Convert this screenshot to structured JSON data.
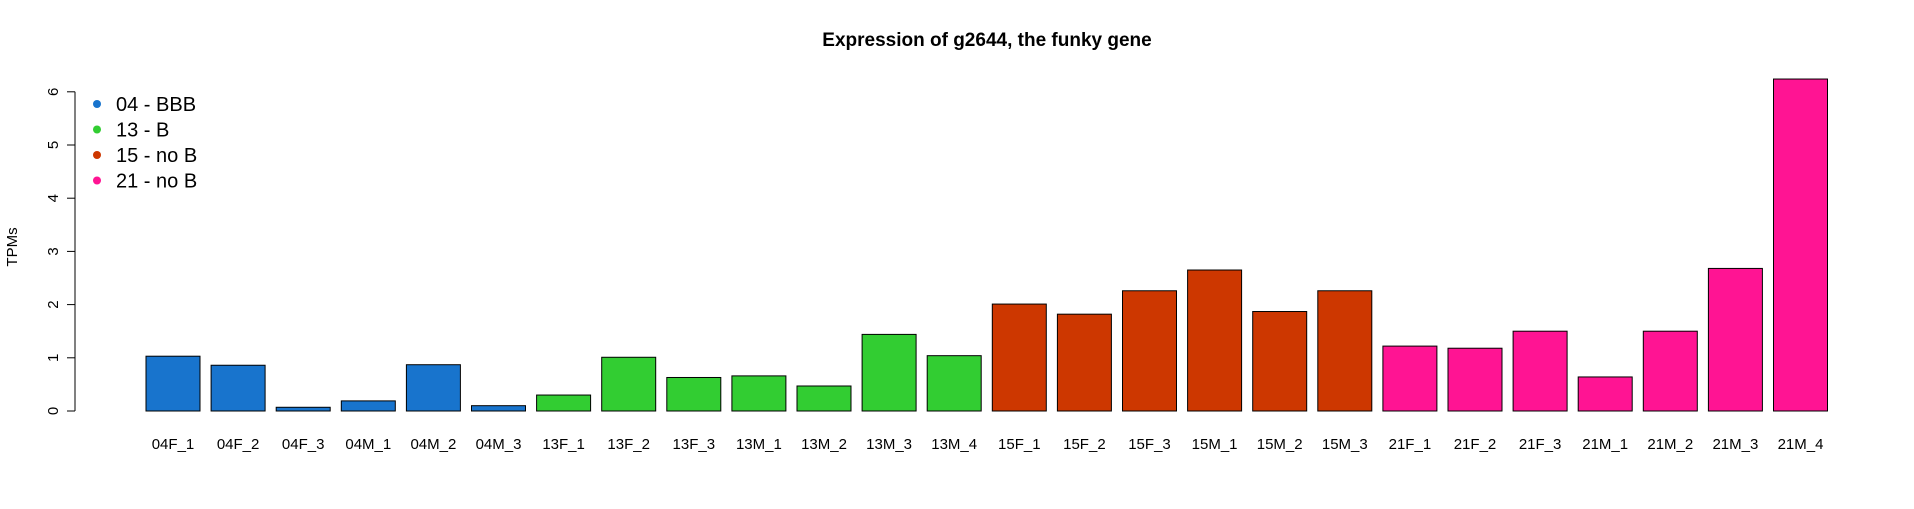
{
  "chart_data": {
    "type": "bar",
    "title": "Expression of g2644, the funky gene",
    "xlabel": "",
    "ylabel": "TPMs",
    "ylim": [
      0,
      6.2
    ],
    "yticks": [
      "0",
      "1",
      "2",
      "3",
      "4",
      "5",
      "6"
    ],
    "grid": false,
    "legend_position": "top-left",
    "categories": [
      "04F_1",
      "04F_2",
      "04F_3",
      "04M_1",
      "04M_2",
      "04M_3",
      "13F_1",
      "13F_2",
      "13F_3",
      "13M_1",
      "13M_2",
      "13M_3",
      "13M_4",
      "15F_1",
      "15F_2",
      "15F_3",
      "15M_1",
      "15M_2",
      "15M_3",
      "21F_1",
      "21F_2",
      "21F_3",
      "21M_1",
      "21M_2",
      "21M_3",
      "21M_4"
    ],
    "values": [
      1.03,
      0.86,
      0.07,
      0.19,
      0.87,
      0.1,
      0.3,
      1.01,
      0.63,
      0.66,
      0.47,
      1.44,
      1.04,
      2.01,
      1.82,
      2.26,
      2.65,
      1.87,
      2.26,
      1.22,
      1.18,
      1.5,
      0.64,
      1.5,
      2.68,
      6.24
    ],
    "groups": [
      "04",
      "04",
      "04",
      "04",
      "04",
      "04",
      "13",
      "13",
      "13",
      "13",
      "13",
      "13",
      "13",
      "15",
      "15",
      "15",
      "15",
      "15",
      "15",
      "21",
      "21",
      "21",
      "21",
      "21",
      "21",
      "21"
    ],
    "legend": [
      {
        "key": "04",
        "label": "04 - BBB",
        "color": "#1874CD"
      },
      {
        "key": "13",
        "label": "13 - B",
        "color": "#32CD32"
      },
      {
        "key": "15",
        "label": "15 - no B",
        "color": "#CD3700"
      },
      {
        "key": "21",
        "label": "21 - no B",
        "color": "#FF1493"
      }
    ]
  }
}
